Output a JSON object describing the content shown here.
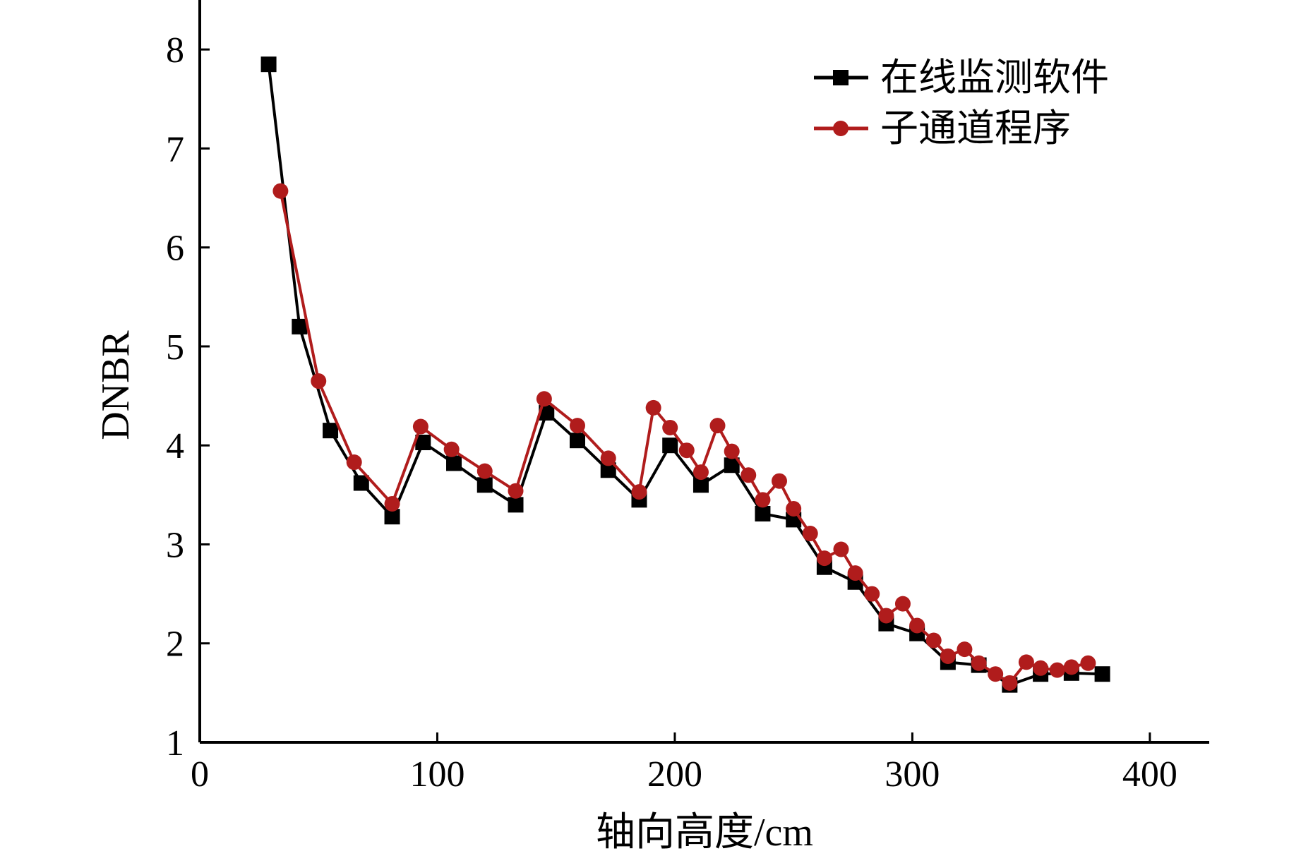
{
  "chart_data": {
    "type": "line",
    "title": "",
    "xlabel": "轴向高度/cm",
    "ylabel": "DNBR",
    "xlim": [
      0,
      425
    ],
    "ylim": [
      1,
      8.5
    ],
    "x_ticks": [
      0,
      100,
      200,
      300,
      400
    ],
    "y_ticks": [
      1,
      2,
      3,
      4,
      5,
      6,
      7,
      8
    ],
    "grid": false,
    "legend_position": "top-right",
    "series": [
      {
        "name": "在线监测软件",
        "color": "#000000",
        "marker": "square",
        "x": [
          29,
          42,
          55,
          68,
          81,
          94,
          107,
          120,
          133,
          146,
          159,
          172,
          185,
          198,
          211,
          224,
          237,
          250,
          263,
          276,
          289,
          302,
          315,
          328,
          341,
          354,
          367,
          380
        ],
        "y": [
          7.85,
          5.2,
          4.15,
          3.62,
          3.28,
          4.03,
          3.82,
          3.6,
          3.4,
          4.33,
          4.05,
          3.75,
          3.45,
          4.0,
          3.6,
          3.8,
          3.31,
          3.25,
          2.77,
          2.62,
          2.2,
          2.1,
          1.81,
          1.78,
          1.58,
          1.69,
          1.7,
          1.69
        ]
      },
      {
        "name": "子通道程序",
        "color": "#b01c1c",
        "marker": "circle",
        "x": [
          34,
          50,
          65,
          81,
          93,
          106,
          120,
          133,
          145,
          159,
          172,
          185,
          191,
          198,
          205,
          211,
          218,
          224,
          231,
          237,
          244,
          250,
          257,
          263,
          270,
          276,
          283,
          289,
          296,
          302,
          309,
          315,
          322,
          328,
          335,
          341,
          348,
          354,
          361,
          367,
          374
        ],
        "y": [
          6.57,
          4.65,
          3.83,
          3.41,
          4.19,
          3.96,
          3.74,
          3.54,
          4.47,
          4.2,
          3.87,
          3.53,
          4.38,
          4.18,
          3.95,
          3.73,
          4.2,
          3.94,
          3.7,
          3.45,
          3.64,
          3.36,
          3.11,
          2.86,
          2.95,
          2.71,
          2.5,
          2.28,
          2.4,
          2.18,
          2.03,
          1.87,
          1.94,
          1.8,
          1.69,
          1.6,
          1.81,
          1.75,
          1.73,
          1.76,
          1.8
        ]
      }
    ]
  }
}
